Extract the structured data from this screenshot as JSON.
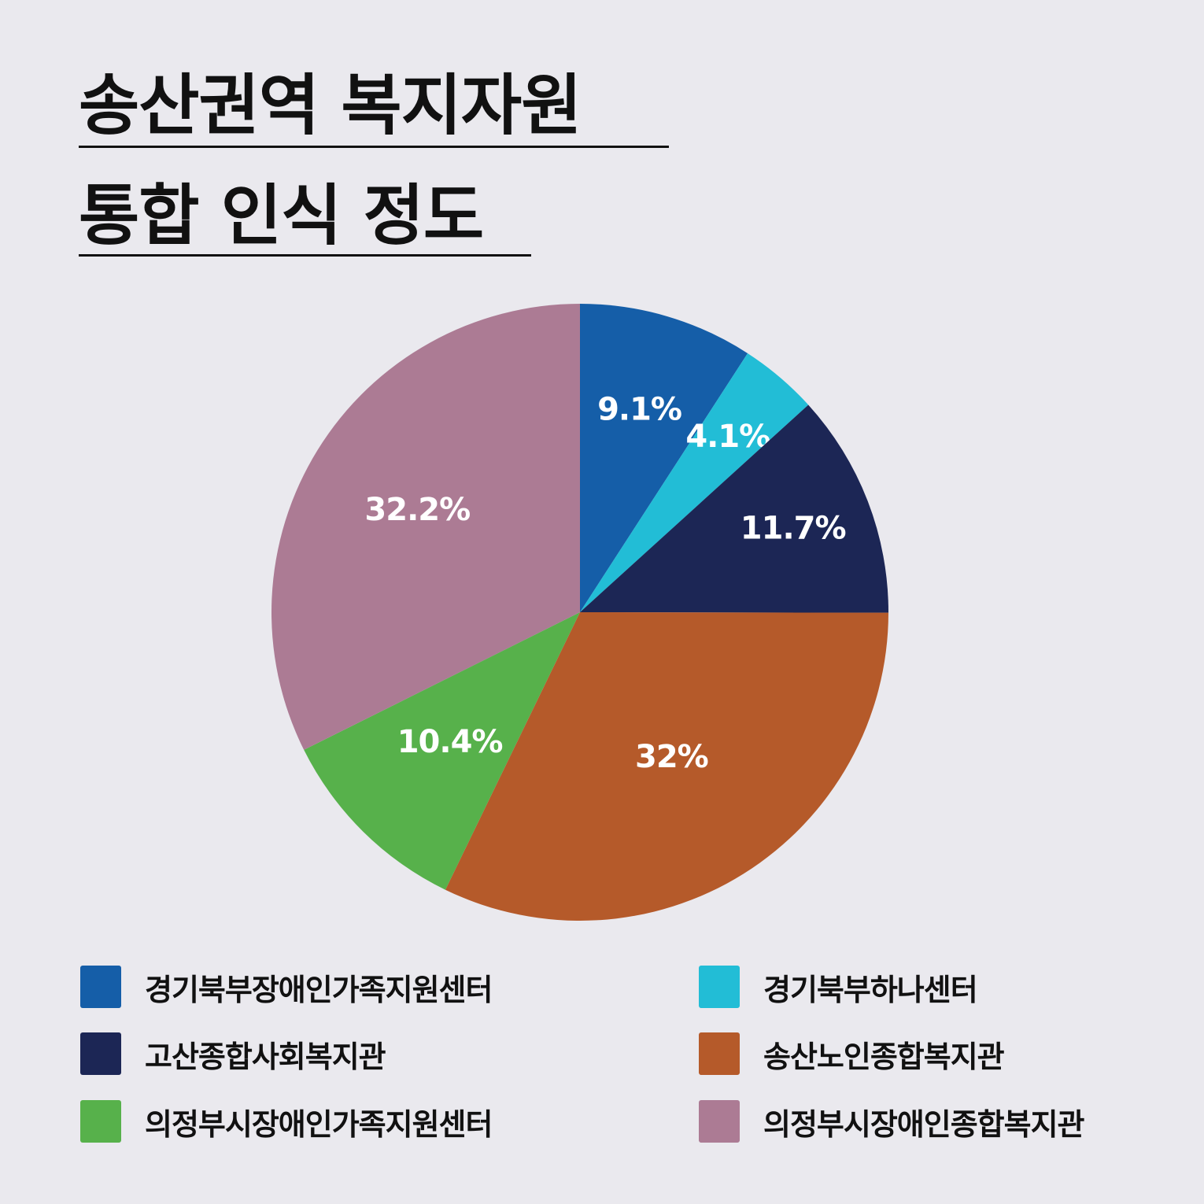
{
  "title": {
    "line1": "송산권역 복지자원",
    "line2": "통합 인식 정도"
  },
  "chart_data": {
    "type": "pie",
    "title": "송산권역 복지자원 통합 인식 정도",
    "slices": [
      {
        "name": "경기북부장애인가족지원센터",
        "value": 9.1,
        "label": "9.1%",
        "color": "#155ea8"
      },
      {
        "name": "경기북부하나센터",
        "value": 4.1,
        "label": "4.1%",
        "color": "#22bdd6"
      },
      {
        "name": "고산종합사회복지관",
        "value": 11.7,
        "label": "11.7%",
        "color": "#1c2655"
      },
      {
        "name": "송산노인종합복지관",
        "value": 32,
        "label": "32%",
        "color": "#b55a2a"
      },
      {
        "name": "의정부시장애인가족지원센터",
        "value": 10.4,
        "label": "10.4%",
        "color": "#57b14b"
      },
      {
        "name": "의정부시장애인종합복지관",
        "value": 32.2,
        "label": "32.2%",
        "color": "#ac7b94"
      }
    ],
    "start_angle": "12 o'clock",
    "direction": "clockwise",
    "legend_placement": "bottom"
  }
}
